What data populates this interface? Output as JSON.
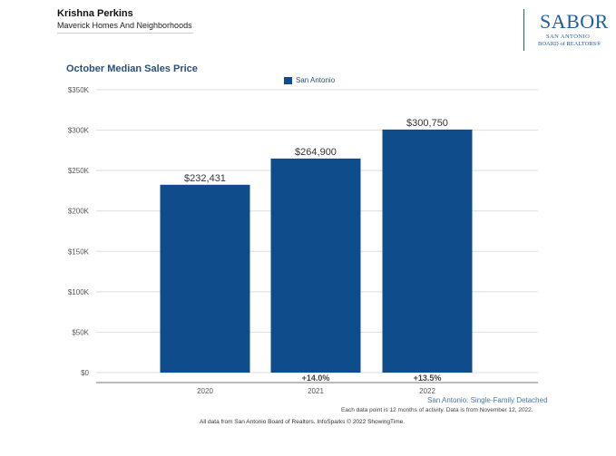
{
  "header": {
    "agent_name": "Krishna Perkins",
    "company": "Maverick Homes And Neighborhoods"
  },
  "logo": {
    "main": "SABOR",
    "line1": "SAN ANTONIO",
    "line2": "BOARD of REALTORS®"
  },
  "chart_data": {
    "type": "bar",
    "title": "October Median Sales Price",
    "categories": [
      "2020",
      "2021",
      "2022"
    ],
    "series": [
      {
        "name": "San Antonio",
        "values": [
          232431,
          264900,
          300750
        ],
        "value_labels": [
          "$232,431",
          "$264,900",
          "$300,750"
        ],
        "color": "#0f4c8c"
      }
    ],
    "change_labels": [
      "",
      "+14.0%",
      "+13.5%"
    ],
    "ylim": [
      0,
      350000
    ],
    "yticks": [
      0,
      50000,
      100000,
      150000,
      200000,
      250000,
      300000,
      350000
    ],
    "ytick_labels": [
      "$0",
      "$50K",
      "$100K",
      "$150K",
      "$200K",
      "$250K",
      "$300K",
      "$350K"
    ],
    "grid": true,
    "legend_position": "top-center",
    "xlabel": "",
    "ylabel": ""
  },
  "footer": {
    "series_note": "San Antonio: Single-Family Detached",
    "data_note": "Each data point is 12 months of activity. Data is from November 12, 2022.",
    "source": "All data from San Antonio Board of Realtors. InfoSparks © 2022 ShowingTime."
  }
}
